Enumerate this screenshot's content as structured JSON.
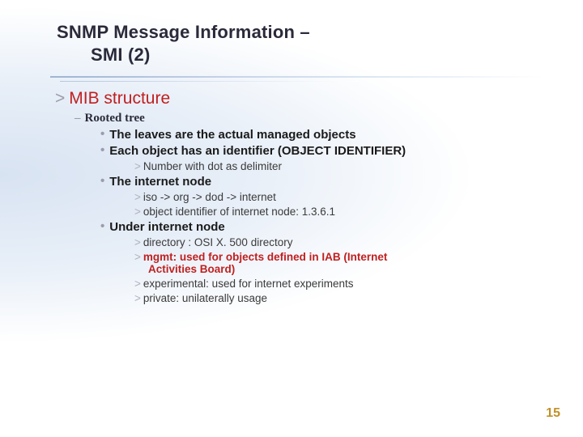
{
  "title_line1": "SNMP Message Information –",
  "title_line2": "SMI (2)",
  "h1": "MIB structure",
  "h2": "Rooted tree",
  "b1": "The leaves are the actual managed objects",
  "b2": "Each object has an identifier (OBJECT IDENTIFIER)",
  "b2a": "Number with dot as delimiter",
  "b3": "The internet node",
  "b3a": "iso -> org -> dod -> internet",
  "b3b": "object identifier of internet node: 1.3.6.1",
  "b4": "Under internet node",
  "b4a": "directory : OSI X. 500 directory",
  "b4b": "mgmt: used for objects defined in IAB (Internet",
  "b4b2": "Activities Board)",
  "b4c": "experimental: used for internet experiments",
  "b4d": "private: unilaterally usage",
  "page": "15",
  "colors": {
    "heading_accent": "#c02020",
    "body_text": "#1a1a1a",
    "muted": "#9c9cac",
    "pagenum": "#c09028",
    "bg_tint": "#d8e3f2"
  },
  "fontsize": {
    "title": 22,
    "h1": 21,
    "bullet": 15,
    "sub": 13.5
  }
}
